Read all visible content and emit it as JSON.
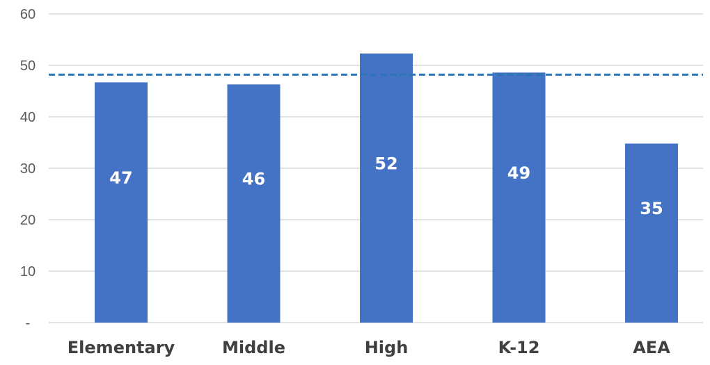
{
  "chart_data": {
    "type": "bar",
    "categories": [
      "Elementary",
      "Middle",
      "High",
      "K-12",
      "AEA"
    ],
    "values": [
      46.7,
      46.3,
      52.3,
      48.6,
      34.8
    ],
    "data_labels": [
      "47",
      "46",
      "52",
      "49",
      "35"
    ],
    "reference_line": {
      "value": 48.2,
      "style": "dashed"
    },
    "ylim": [
      0,
      60
    ],
    "y_ticks": [
      {
        "value": 0,
        "label": "-"
      },
      {
        "value": 10,
        "label": "10"
      },
      {
        "value": 20,
        "label": "20"
      },
      {
        "value": 30,
        "label": "30"
      },
      {
        "value": 40,
        "label": "40"
      },
      {
        "value": 50,
        "label": "50"
      },
      {
        "value": 60,
        "label": "60"
      }
    ],
    "grid": true,
    "colors": {
      "bar": "#4472C4",
      "reference_line": "#2E75B6",
      "grid": "#D9D9D9",
      "label": "#FFFFFF"
    }
  }
}
